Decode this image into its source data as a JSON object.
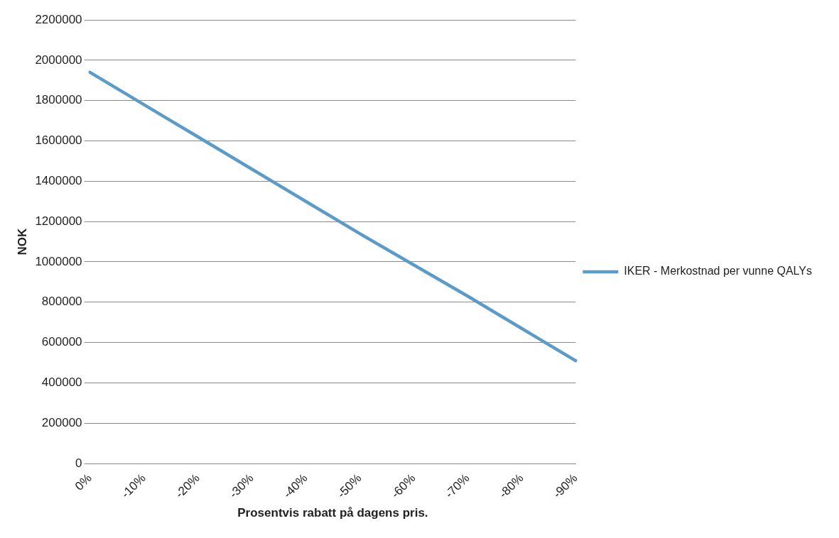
{
  "chart_data": {
    "type": "line",
    "xlabel": "Prosentvis rabatt på dagens pris.",
    "ylabel": "NOK",
    "categories": [
      "0%",
      "-10%",
      "-20%",
      "-30%",
      "-40%",
      "-50%",
      "-60%",
      "-70%",
      "-80%",
      "-90%"
    ],
    "series": [
      {
        "name": "IKER - Merkostnad per vunne QALYs",
        "color": "#5b9bc8",
        "values": [
          1940000,
          1780000,
          1620000,
          1460000,
          1300000,
          1140000,
          985000,
          830000,
          670000,
          510000
        ]
      }
    ],
    "ylim": [
      0,
      2200000
    ],
    "yticks": [
      0,
      200000,
      400000,
      600000,
      800000,
      1000000,
      1200000,
      1400000,
      1600000,
      1800000,
      2000000,
      2200000
    ],
    "grid": "y",
    "legend": "right",
    "marker": "none",
    "line_style": "solid"
  }
}
